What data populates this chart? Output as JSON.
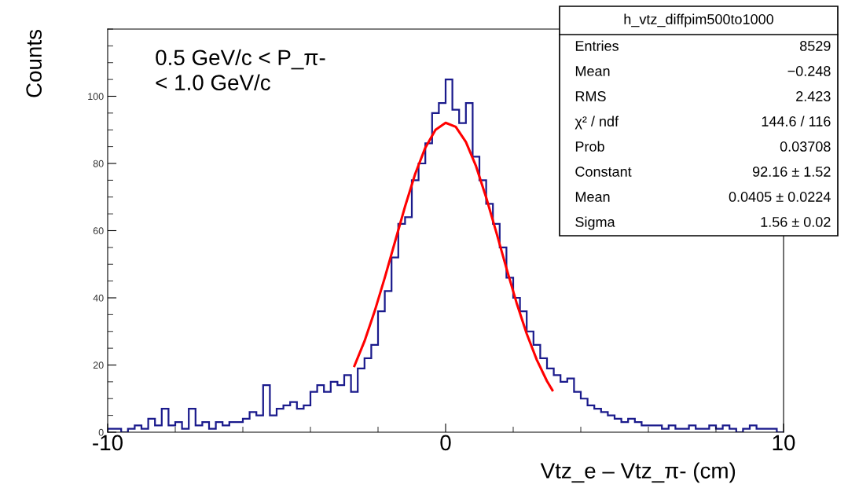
{
  "chart_data": {
    "type": "histogram",
    "title": "h_vtz_diffpim500to1000",
    "xlabel": "Vtz_e – Vtz_π- (cm)",
    "ylabel": "Counts",
    "bins": [
      -10,
      -9.8,
      -9.6,
      -9.4,
      -9.2,
      -9,
      -8.8,
      -8.6,
      -8.4,
      -8.2,
      -8,
      -7.8,
      -7.6,
      -7.4,
      -7.2,
      -7,
      -6.8,
      -6.6,
      -6.4,
      -6.2,
      -6,
      -5.8,
      -5.6,
      -5.4,
      -5.2,
      -5,
      -4.8,
      -4.6,
      -4.4,
      -4.2,
      -4,
      -3.8,
      -3.6,
      -3.4,
      -3.2,
      -3,
      -2.8,
      -2.6,
      -2.4,
      -2.2,
      -2,
      -1.8,
      -1.6,
      -1.4,
      -1.2,
      -1,
      -0.8,
      -0.6,
      -0.4,
      -0.2,
      0,
      0.2,
      0.4,
      0.6,
      0.8,
      1,
      1.2,
      1.4,
      1.6,
      1.8,
      2,
      2.2,
      2.4,
      2.6,
      2.8,
      3,
      3.2,
      3.4,
      3.6,
      3.8,
      4,
      4.2,
      4.4,
      4.6,
      4.8,
      5,
      5.2,
      5.4,
      5.6,
      5.8,
      6,
      6.2,
      6.4,
      6.6,
      6.8,
      7,
      7.2,
      7.4,
      7.6,
      7.8,
      8,
      8.2,
      8.4,
      8.6,
      8.8,
      9,
      9.2,
      9.4,
      9.6,
      9.8,
      10
    ],
    "values": [
      1,
      1,
      0,
      1,
      2,
      1,
      4,
      2,
      7,
      2,
      3,
      1,
      7,
      2,
      3,
      1,
      3,
      2,
      3,
      3,
      4,
      6,
      5,
      14,
      5,
      7,
      8,
      9,
      7,
      8,
      12,
      14,
      12,
      15,
      14,
      17,
      12,
      19,
      22,
      26,
      36,
      42,
      52,
      62,
      64,
      75,
      80,
      86,
      95,
      98,
      105,
      96,
      92,
      98,
      82,
      75,
      68,
      62,
      55,
      46,
      40,
      36,
      30,
      26,
      22,
      19,
      17,
      15,
      16,
      12,
      10,
      8,
      7,
      6,
      5,
      4,
      3,
      4,
      3,
      2,
      2,
      2,
      1,
      2,
      1,
      1,
      2,
      1,
      1,
      2,
      1,
      2,
      1,
      0,
      1,
      2,
      1,
      1,
      1,
      0
    ],
    "color": "#1a1a8c",
    "series": [
      {
        "type": "line",
        "color": "#ff0000",
        "x": [
          -2.7,
          -2.4,
          -2.1,
          -1.8,
          -1.5,
          -1.2,
          -0.9,
          -0.6,
          -0.3,
          0,
          0.3,
          0.6,
          0.9,
          1.2,
          1.5,
          1.8,
          2.1,
          2.4,
          2.7,
          3,
          3.16
        ],
        "values": [
          19.7,
          27.1,
          36.0,
          46.0,
          56.6,
          67.2,
          76.9,
          84.7,
          90.0,
          92.1,
          90.9,
          86.4,
          79.2,
          69.9,
          59.5,
          48.8,
          38.5,
          29.3,
          21.5,
          15.2,
          12.5
        ]
      }
    ],
    "xlim": [
      -10,
      10
    ],
    "ylim": [
      0,
      120
    ],
    "xticks": [
      -10,
      0,
      10
    ],
    "yticks": [
      0,
      20,
      40,
      60,
      80,
      100
    ],
    "grid": false,
    "annotations": [
      "0.5 GeV/c < P_π-\n< 1.0 GeV/c",
      "Entries\t8529",
      "Mean\t−0.248",
      "RMS\t2.423",
      "χ² / ndf\t144.6 / 116",
      "Prob\t0.03708",
      "Constant\t92.16 ± 1.52",
      "Mean\t0.0405 ± 0.0224",
      "Sigma\t1.56 ± 0.02"
    ]
  }
}
